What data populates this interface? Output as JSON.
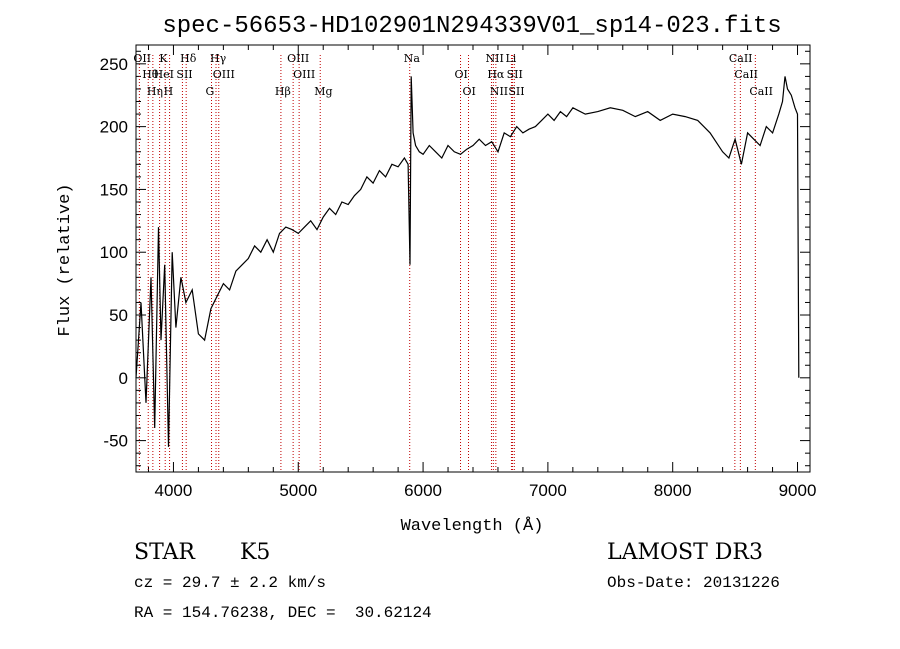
{
  "chart_data": {
    "type": "line",
    "title": "spec-56653-HD102901N294339V01_sp14-023.fits",
    "xlabel": "Wavelength (Å)",
    "ylabel": "Flux (relative)",
    "xlim": [
      3700,
      9100
    ],
    "ylim": [
      -75,
      265
    ],
    "xticks": [
      4000,
      5000,
      6000,
      7000,
      8000,
      9000
    ],
    "yticks": [
      -50,
      0,
      50,
      100,
      150,
      200,
      250
    ],
    "grid": false,
    "series": [
      {
        "x": [
          3700,
          3740,
          3780,
          3820,
          3850,
          3880,
          3900,
          3930,
          3960,
          3990,
          4020,
          4060,
          4100,
          4150,
          4200,
          4250,
          4300,
          4350,
          4400,
          4450,
          4500,
          4550,
          4600,
          4650,
          4700,
          4750,
          4800,
          4850,
          4900,
          4950,
          5000,
          5050,
          5100,
          5150,
          5200,
          5250,
          5300,
          5350,
          5400,
          5450,
          5500,
          5550,
          5600,
          5650,
          5700,
          5750,
          5800,
          5850,
          5880,
          5895,
          5905,
          5920,
          5940,
          5970,
          6000,
          6050,
          6100,
          6150,
          6200,
          6250,
          6300,
          6350,
          6400,
          6450,
          6500,
          6550,
          6600,
          6650,
          6700,
          6750,
          6800,
          6850,
          6900,
          6950,
          7000,
          7050,
          7100,
          7150,
          7200,
          7300,
          7400,
          7500,
          7600,
          7700,
          7800,
          7900,
          8000,
          8100,
          8200,
          8300,
          8400,
          8450,
          8500,
          8550,
          8600,
          8650,
          8700,
          8750,
          8800,
          8850,
          8880,
          8900,
          8920,
          8950,
          8980,
          9000,
          9010
        ],
        "values": [
          0,
          60,
          -20,
          80,
          -40,
          120,
          30,
          90,
          -55,
          100,
          40,
          80,
          60,
          70,
          35,
          30,
          55,
          65,
          75,
          70,
          85,
          90,
          95,
          105,
          100,
          110,
          100,
          115,
          120,
          118,
          115,
          120,
          125,
          118,
          128,
          135,
          130,
          140,
          138,
          145,
          150,
          160,
          155,
          165,
          160,
          170,
          168,
          175,
          170,
          90,
          240,
          195,
          185,
          180,
          178,
          185,
          180,
          175,
          185,
          180,
          178,
          182,
          185,
          190,
          185,
          188,
          180,
          195,
          192,
          200,
          195,
          198,
          200,
          205,
          210,
          205,
          212,
          208,
          215,
          210,
          212,
          215,
          213,
          208,
          212,
          205,
          210,
          208,
          205,
          195,
          180,
          175,
          190,
          170,
          195,
          190,
          185,
          200,
          195,
          210,
          220,
          240,
          230,
          225,
          215,
          210,
          0
        ]
      }
    ],
    "lines": [
      {
        "name": "OII",
        "x": 3727
      },
      {
        "name": "Hθ",
        "x": 3798
      },
      {
        "name": "Hη",
        "x": 3835
      },
      {
        "name": "K",
        "x": 3934
      },
      {
        "name": "HeI",
        "x": 3889
      },
      {
        "name": "H",
        "x": 3969
      },
      {
        "name": "Hδ",
        "x": 4102
      },
      {
        "name": "SII",
        "x": 4072
      },
      {
        "name": "G",
        "x": 4305
      },
      {
        "name": "Hγ",
        "x": 4341
      },
      {
        "name": "OIII",
        "x": 4363
      },
      {
        "name": "Hβ",
        "x": 4861
      },
      {
        "name": "OIII",
        "x": 4959
      },
      {
        "name": "OIII",
        "x": 5007
      },
      {
        "name": "Mg",
        "x": 5176
      },
      {
        "name": "Na",
        "x": 5893
      },
      {
        "name": "OI",
        "x": 6300
      },
      {
        "name": "OI",
        "x": 6364
      },
      {
        "name": "NII",
        "x": 6548
      },
      {
        "name": "Hα",
        "x": 6563
      },
      {
        "name": "NII",
        "x": 6583
      },
      {
        "name": "Li",
        "x": 6708
      },
      {
        "name": "SII",
        "x": 6717
      },
      {
        "name": "SII",
        "x": 6731
      },
      {
        "name": "CaII",
        "x": 8498
      },
      {
        "name": "CaII",
        "x": 8542
      },
      {
        "name": "CaII",
        "x": 8662
      }
    ],
    "line_color": "#c00000"
  },
  "info": {
    "object_class": "STAR",
    "subclass": "K5",
    "survey": "LAMOST DR3",
    "cz": "cz = 29.7 ± 2.2 km/s",
    "obs_date": "Obs-Date: 20131226",
    "coords": "RA = 154.76238, DEC =  30.62124"
  }
}
